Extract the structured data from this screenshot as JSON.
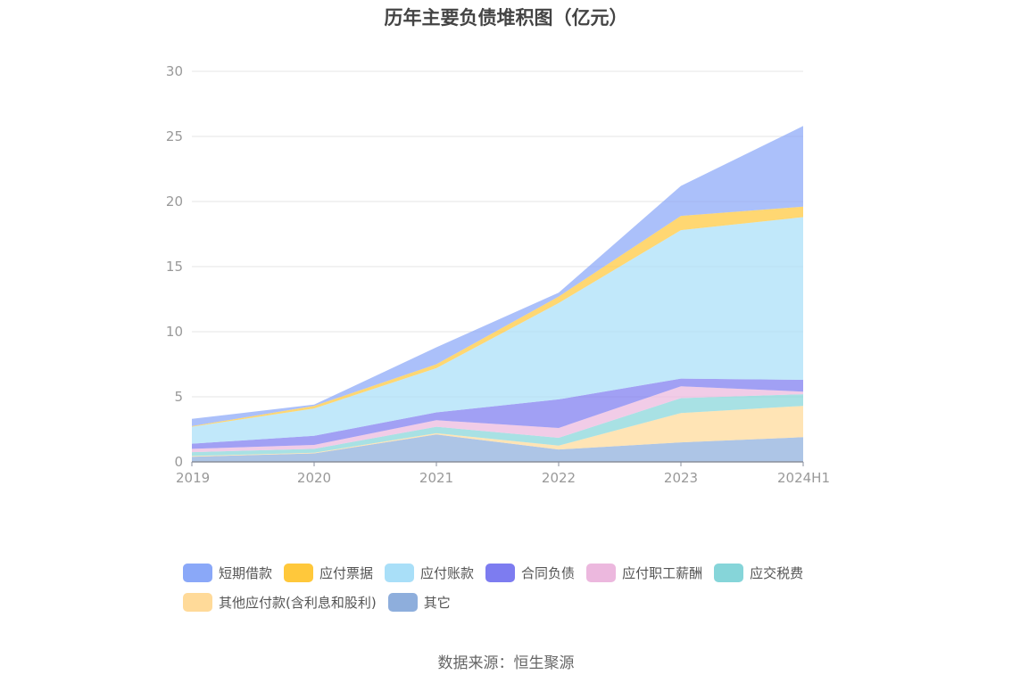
{
  "chart_data": {
    "type": "area",
    "stacked": true,
    "title": "历年主要负债堆积图（亿元）",
    "x": [
      "2019",
      "2020",
      "2021",
      "2022",
      "2023",
      "2024H1"
    ],
    "ylim": [
      0,
      30
    ],
    "yticks": [
      0,
      5,
      10,
      15,
      20,
      25,
      30
    ],
    "grid": true,
    "legend_position": "bottom",
    "series": [
      {
        "name": "其它",
        "color": "#8EAEDC",
        "values": [
          0.4,
          0.65,
          2.1,
          0.95,
          1.5,
          1.9
        ]
      },
      {
        "name": "其他应付款(含利息和股利)",
        "color": "#FFDA99",
        "values": [
          0.05,
          0.05,
          0.1,
          0.3,
          2.25,
          2.4
        ]
      },
      {
        "name": "应交税费",
        "color": "#86D5D9",
        "values": [
          0.3,
          0.3,
          0.5,
          0.6,
          1.15,
          0.9
        ]
      },
      {
        "name": "应付职工薪酬",
        "color": "#ECB8DE",
        "values": [
          0.25,
          0.3,
          0.5,
          0.75,
          0.9,
          0.2
        ]
      },
      {
        "name": "合同负债",
        "color": "#7D7CF0",
        "values": [
          0.4,
          0.7,
          0.6,
          2.2,
          0.6,
          0.9
        ]
      },
      {
        "name": "应付账款",
        "color": "#A9DFF8",
        "values": [
          1.3,
          2.1,
          3.4,
          7.4,
          11.4,
          12.5
        ]
      },
      {
        "name": "应付票据",
        "color": "#FFC83B",
        "values": [
          0.05,
          0.2,
          0.3,
          0.5,
          1.1,
          0.8
        ]
      },
      {
        "name": "短期借款",
        "color": "#8AA8F8",
        "values": [
          0.55,
          0.1,
          1.3,
          0.3,
          2.3,
          6.2
        ]
      }
    ],
    "legend_order": [
      "短期借款",
      "应付票据",
      "应付账款",
      "合同负债",
      "应付职工薪酬",
      "应交税费",
      "其他应付款(含利息和股利)",
      "其它"
    ]
  },
  "source": "数据来源：恒生聚源"
}
